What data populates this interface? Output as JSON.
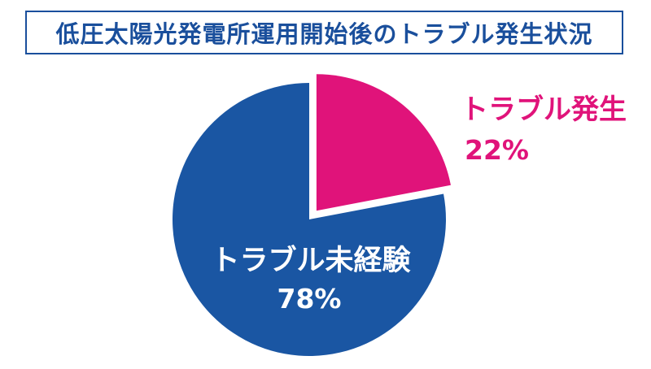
{
  "chart_data": {
    "type": "pie",
    "title": "低圧太陽光発電所運用開始後のトラブル発生状況",
    "slices": [
      {
        "label": "トラブル発生",
        "value": 22,
        "value_label": "22%",
        "color": "#e0137a",
        "exploded": true
      },
      {
        "label": "トラブル未経験",
        "value": 78,
        "value_label": "78%",
        "color": "#1a56a3",
        "exploded": false
      }
    ]
  }
}
